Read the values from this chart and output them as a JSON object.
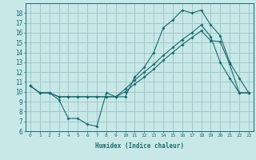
{
  "xlabel": "Humidex (Indice chaleur)",
  "bg_color": "#c8e8e8",
  "grid_color": "#a0c8c8",
  "line_color": "#1a6b6b",
  "xlim": [
    -0.5,
    23.5
  ],
  "ylim": [
    6,
    19
  ],
  "yticks": [
    6,
    7,
    8,
    9,
    10,
    11,
    12,
    13,
    14,
    15,
    16,
    17,
    18
  ],
  "xticks": [
    0,
    1,
    2,
    3,
    4,
    5,
    6,
    7,
    8,
    9,
    10,
    11,
    12,
    13,
    14,
    15,
    16,
    17,
    18,
    19,
    20,
    21,
    22,
    23
  ],
  "line1_x": [
    0,
    1,
    2,
    3,
    4,
    5,
    6,
    7,
    8,
    9,
    10,
    11,
    12,
    13,
    14,
    15,
    16,
    17,
    18,
    19,
    20,
    21,
    22,
    23
  ],
  "line1_y": [
    10.6,
    9.9,
    9.9,
    9.2,
    7.3,
    7.3,
    6.7,
    6.5,
    9.9,
    9.5,
    9.5,
    11.5,
    12.5,
    14.0,
    16.5,
    17.3,
    18.3,
    18.0,
    18.3,
    16.8,
    15.7,
    13.0,
    11.4,
    9.9
  ],
  "line2_x": [
    0,
    1,
    2,
    3,
    4,
    5,
    6,
    7,
    8,
    9,
    10,
    11,
    12,
    13,
    14,
    15,
    16,
    17,
    18,
    19,
    20,
    21,
    22,
    23
  ],
  "line2_y": [
    10.6,
    9.9,
    9.9,
    9.5,
    9.5,
    9.5,
    9.5,
    9.5,
    9.5,
    9.5,
    10.3,
    11.2,
    12.0,
    12.8,
    13.7,
    14.5,
    15.3,
    16.0,
    16.8,
    15.6,
    13.0,
    11.4,
    9.9,
    9.9
  ],
  "line3_x": [
    0,
    1,
    2,
    3,
    4,
    5,
    6,
    7,
    8,
    9,
    10,
    11,
    12,
    13,
    14,
    15,
    16,
    17,
    18,
    19,
    20,
    21,
    22,
    23
  ],
  "line3_y": [
    10.6,
    9.9,
    9.9,
    9.5,
    9.5,
    9.5,
    9.5,
    9.5,
    9.5,
    9.5,
    10.0,
    10.8,
    11.5,
    12.3,
    13.2,
    14.0,
    14.8,
    15.5,
    16.2,
    15.2,
    15.1,
    12.8,
    9.9,
    9.9
  ]
}
